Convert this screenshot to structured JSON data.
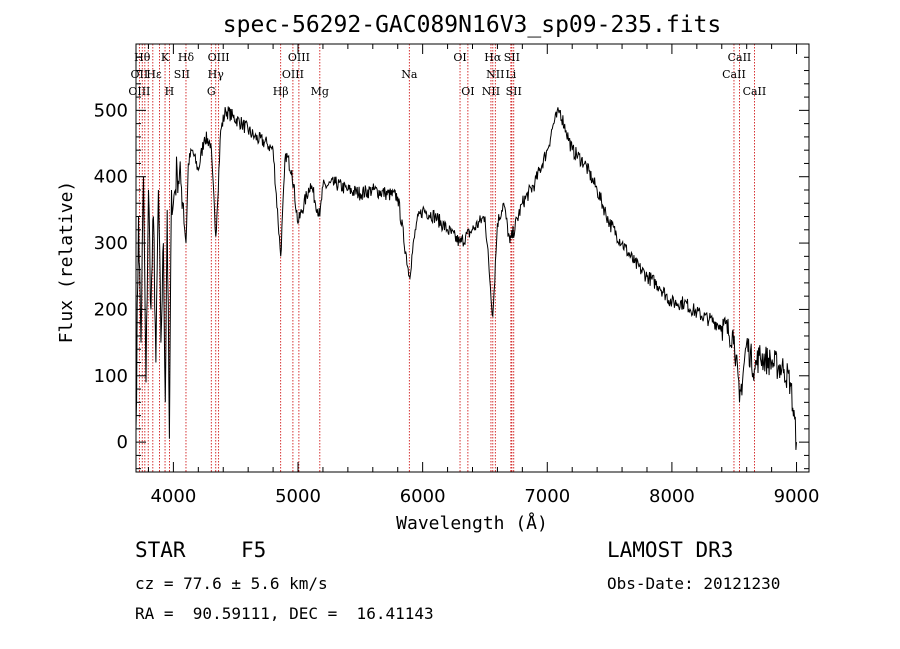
{
  "chart_data": {
    "type": "line",
    "title": "spec-56292-GAC089N16V3_sp09-235.fits",
    "xlabel": "Wavelength (Å)",
    "ylabel": "Flux (relative)",
    "xlim": [
      3700,
      9100
    ],
    "ylim": [
      -45,
      600
    ],
    "xticks": [
      4000,
      5000,
      6000,
      7000,
      8000,
      9000
    ],
    "xtick_labels": [
      "4000",
      "5000",
      "6000",
      "7000",
      "8000",
      "9000"
    ],
    "yticks": [
      0,
      100,
      200,
      300,
      400,
      500
    ],
    "ytick_labels": [
      "0",
      "100",
      "200",
      "300",
      "400",
      "500"
    ],
    "grid": false,
    "series": [
      {
        "name": "flux",
        "x": [
          3700,
          3720,
          3740,
          3760,
          3780,
          3800,
          3820,
          3840,
          3860,
          3880,
          3900,
          3920,
          3935,
          3950,
          3968,
          3985,
          4000,
          4030,
          4060,
          4080,
          4101,
          4120,
          4150,
          4200,
          4250,
          4300,
          4340,
          4380,
          4420,
          4480,
          4550,
          4650,
          4750,
          4800,
          4861,
          4900,
          4950,
          5000,
          5100,
          5175,
          5200,
          5300,
          5400,
          5500,
          5600,
          5700,
          5800,
          5893,
          5950,
          6000,
          6100,
          6200,
          6300,
          6400,
          6500,
          6563,
          6600,
          6650,
          6700,
          6800,
          6900,
          7000,
          7050,
          7100,
          7150,
          7200,
          7300,
          7400,
          7500,
          7600,
          7700,
          7800,
          7900,
          8000,
          8100,
          8200,
          8300,
          8400,
          8500,
          8542,
          8600,
          8662,
          8700,
          8800,
          8900,
          8950,
          9000
        ],
        "y": [
          20,
          340,
          150,
          400,
          90,
          380,
          200,
          340,
          120,
          380,
          150,
          300,
          60,
          350,
          5,
          380,
          360,
          410,
          390,
          360,
          300,
          420,
          440,
          410,
          460,
          450,
          310,
          470,
          500,
          490,
          480,
          460,
          450,
          440,
          280,
          435,
          410,
          330,
          390,
          340,
          385,
          390,
          380,
          375,
          380,
          375,
          370,
          250,
          330,
          350,
          340,
          320,
          300,
          320,
          340,
          190,
          330,
          360,
          300,
          360,
          390,
          440,
          480,
          500,
          470,
          440,
          420,
          380,
          330,
          300,
          270,
          250,
          235,
          210,
          210,
          195,
          185,
          175,
          160,
          60,
          150,
          110,
          130,
          120,
          110,
          90,
          0
        ]
      }
    ],
    "spectral_lines": [
      {
        "label": "Hθ",
        "x": 3750,
        "row": 1
      },
      {
        "label": "K",
        "x": 3933,
        "row": 1
      },
      {
        "label": "Hδ",
        "x": 4101,
        "row": 1
      },
      {
        "label": "OIII",
        "x": 4363,
        "row": 1
      },
      {
        "label": "OIII",
        "x": 5007,
        "row": 1
      },
      {
        "label": "OI",
        "x": 6300,
        "row": 1
      },
      {
        "label": "Hα",
        "x": 6563,
        "row": 1
      },
      {
        "label": "SII",
        "x": 6716,
        "row": 1
      },
      {
        "label": "CaII",
        "x": 8542,
        "row": 1
      },
      {
        "label": "OII",
        "x": 3727,
        "row": 2
      },
      {
        "label": "Hε",
        "x": 3845,
        "row": 2
      },
      {
        "label": "SII",
        "x": 4068,
        "row": 2
      },
      {
        "label": "Hγ",
        "x": 4340,
        "row": 2
      },
      {
        "label": "OIII",
        "x": 4959,
        "row": 2
      },
      {
        "label": "Na",
        "x": 5893,
        "row": 2
      },
      {
        "label": "NII",
        "x": 6583,
        "row": 2
      },
      {
        "label": "Li",
        "x": 6708,
        "row": 2
      },
      {
        "label": "CaII",
        "x": 8498,
        "row": 2
      },
      {
        "label": "OIII",
        "x": 3727,
        "row": 3
      },
      {
        "label": "H",
        "x": 3968,
        "row": 3
      },
      {
        "label": "G",
        "x": 4304,
        "row": 3
      },
      {
        "label": "Hβ",
        "x": 4861,
        "row": 3
      },
      {
        "label": "Mg",
        "x": 5175,
        "row": 3
      },
      {
        "label": "OI",
        "x": 6363,
        "row": 3
      },
      {
        "label": "NII",
        "x": 6548,
        "row": 3
      },
      {
        "label": "SII",
        "x": 6731,
        "row": 3
      },
      {
        "label": "CaII",
        "x": 8662,
        "row": 3
      }
    ],
    "marker_lines_x": [
      3727,
      3750,
      3771,
      3798,
      3835,
      3889,
      3933,
      3968,
      4101,
      4304,
      4340,
      4363,
      4861,
      4959,
      5007,
      5175,
      5893,
      6300,
      6363,
      6548,
      6563,
      6583,
      6708,
      6716,
      6731,
      8498,
      8542,
      8662
    ]
  },
  "info": {
    "class_label": "STAR",
    "subclass": "F5",
    "survey": "LAMOST DR3",
    "cz": "cz = 77.6 ± 5.6 km/s",
    "obs_date": "Obs-Date: 20121230",
    "coords": "RA =  90.59111, DEC =  16.41143"
  },
  "colors": {
    "line": "#000000",
    "marker": "#cc0000",
    "axis": "#000000"
  }
}
